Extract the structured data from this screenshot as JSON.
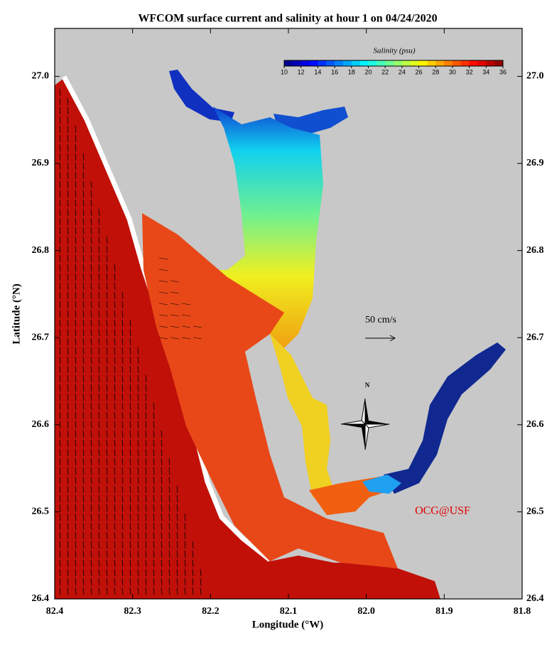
{
  "map": {
    "title": "WFCOM surface current and salinity at hour 1 on 04/24/2020",
    "xlabel": "Longitude (°W)",
    "ylabel": "Latitude (°N)",
    "xlim": [
      82.4,
      81.8
    ],
    "ylim": [
      26.4,
      27.055
    ],
    "xticks": [
      82.4,
      82.3,
      82.2,
      82.1,
      {
        "value": 82,
        "label": "82.0"
      },
      81.9,
      81.8
    ],
    "yticks": [
      26.4,
      26.5,
      26.6,
      26.7,
      26.8,
      26.9,
      {
        "value": 27,
        "label": "27.0"
      }
    ],
    "colorbar": {
      "title": "Salinity (psu)",
      "lim": [
        10,
        36
      ],
      "ticks": [
        10,
        12,
        14,
        16,
        18,
        20,
        22,
        24,
        26,
        28,
        30,
        32,
        34,
        36
      ]
    },
    "scale_label": "50 cm/s",
    "north_label": "N",
    "credit": "OCG@USF"
  }
}
